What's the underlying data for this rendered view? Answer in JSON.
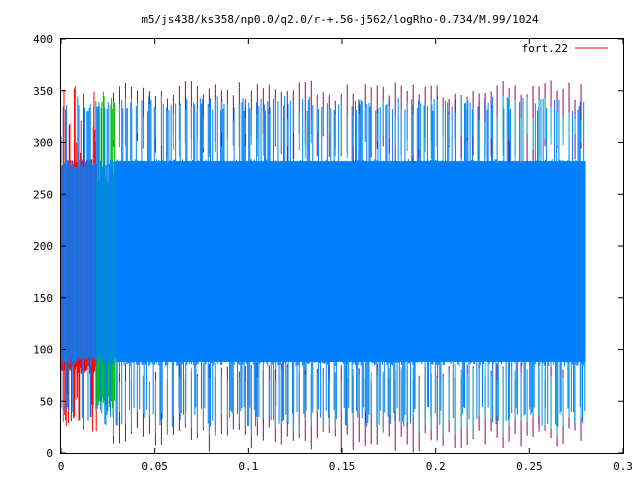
{
  "chart_data": {
    "type": "line",
    "title": "m5/js438/ks358/np0.0/q2.0/r-+.56-j562/logRho-0.734/M.99/1024",
    "xlabel": "",
    "ylabel": "",
    "xlim": [
      0,
      0.3
    ],
    "ylim": [
      0,
      400
    ],
    "x_ticks": [
      "0",
      "0.05",
      "0.1",
      "0.15",
      "0.2",
      "0.25",
      "0.3"
    ],
    "y_ticks": [
      "0",
      "50",
      "100",
      "150",
      "200",
      "250",
      "300",
      "350",
      "400"
    ],
    "grid": false,
    "legend_position": "top-right",
    "legend": [
      {
        "label": "fort.22",
        "color": "#ff0000"
      }
    ],
    "series": [
      {
        "name": "fort.22",
        "color": "#ff0000",
        "x_range": [
          0,
          0.019
        ],
        "band": [
          80,
          280
        ],
        "spike_high": [
          290,
          355
        ],
        "spike_low": [
          20,
          60
        ]
      },
      {
        "color": "#00c000",
        "x_range": [
          0.019,
          0.029
        ],
        "band": [
          50,
          265
        ],
        "spike_high": [
          330,
          357
        ],
        "spike_low": [
          35,
          55
        ]
      },
      {
        "color": "#0080ff",
        "x_range": [
          0.0,
          0.28
        ],
        "band": [
          88,
          280
        ],
        "spike_high": [
          330,
          345
        ],
        "spike_low": [
          25,
          45
        ]
      },
      {
        "color": "#a00060",
        "x_range": [
          0.028,
          0.28
        ],
        "band": [
          50,
          350
        ],
        "spike_high": [
          340,
          360
        ],
        "spike_low": [
          0,
          25
        ]
      },
      {
        "color": "#00c0c0",
        "x_range": [
          0.028,
          0.28
        ],
        "band": [
          60,
          320
        ],
        "spike_high": [
          320,
          345
        ],
        "spike_low": [
          15,
          40
        ]
      }
    ]
  }
}
